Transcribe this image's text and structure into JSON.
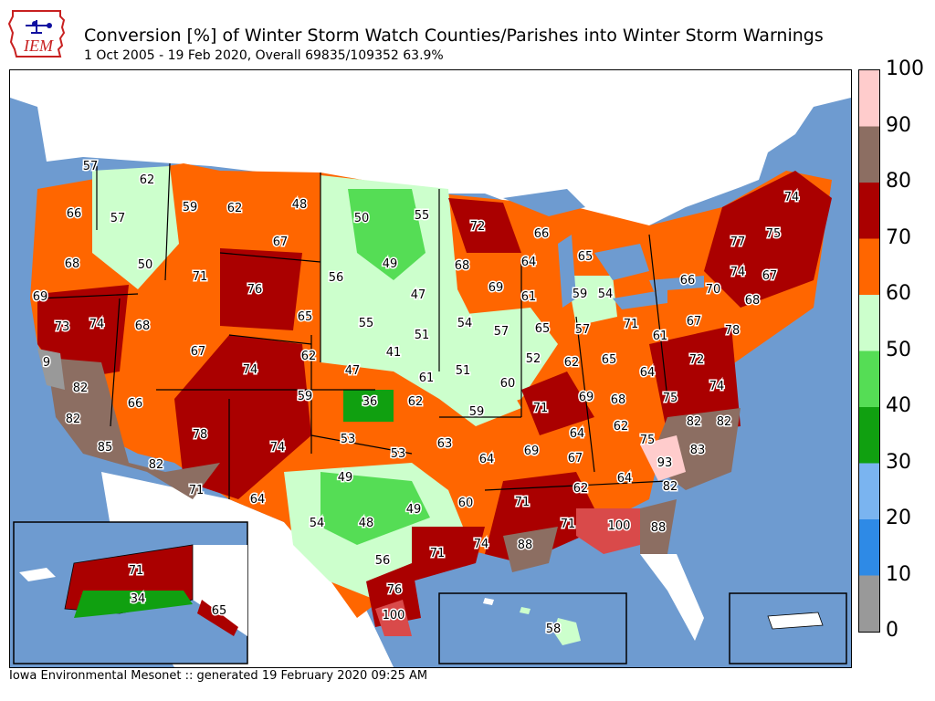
{
  "header": {
    "logo_text": "IEM",
    "title": "Conversion [%] of Winter Storm Watch Counties/Parishes into Winter Storm Warnings",
    "subtitle": "1 Oct 2005 - 19 Feb 2020, Overall 69835/109352 63.9%"
  },
  "footer": {
    "text": "Iowa Environmental Mesonet :: generated 19 February 2020 09:25 AM"
  },
  "colors": {
    "ocean": "#6e9bd0",
    "land_nodata": "#ffffff",
    "bins": [
      "#999999",
      "#2e8ae6",
      "#7ab4f0",
      "#10a010",
      "#55dd55",
      "#ccffcc",
      "#ff6600",
      "#aa0000",
      "#8c6e62",
      "#ffcccc"
    ]
  },
  "legend": {
    "ticks": [
      "0",
      "10",
      "20",
      "30",
      "40",
      "50",
      "60",
      "70",
      "80",
      "90",
      "100"
    ]
  },
  "regions": [
    {
      "id": "wa-w",
      "value": "57"
    },
    {
      "id": "wa-e",
      "value": "62"
    },
    {
      "id": "or-w",
      "value": "66"
    },
    {
      "id": "or-c",
      "value": "57"
    },
    {
      "id": "id-n",
      "value": "59"
    },
    {
      "id": "mt-w",
      "value": "62"
    },
    {
      "id": "mt-ne",
      "value": "48"
    },
    {
      "id": "nd-w",
      "value": "50"
    },
    {
      "id": "nd-e",
      "value": "55"
    },
    {
      "id": "mn-n",
      "value": "72"
    },
    {
      "id": "mi-up",
      "value": "66"
    },
    {
      "id": "mt-e",
      "value": "67"
    },
    {
      "id": "or-e",
      "value": "68"
    },
    {
      "id": "id-s",
      "value": "50"
    },
    {
      "id": "id-se",
      "value": "71"
    },
    {
      "id": "wy",
      "value": "76"
    },
    {
      "id": "sd-w",
      "value": "56"
    },
    {
      "id": "sd-e",
      "value": "49"
    },
    {
      "id": "mn-s",
      "value": "68"
    },
    {
      "id": "wi-n",
      "value": "64"
    },
    {
      "id": "mi-n",
      "value": "65"
    },
    {
      "id": "ca-nw",
      "value": "69"
    },
    {
      "id": "ca-n",
      "value": "73"
    },
    {
      "id": "nv-n",
      "value": "74"
    },
    {
      "id": "ut-n",
      "value": "68"
    },
    {
      "id": "wy-s",
      "value": "65"
    },
    {
      "id": "ne-w",
      "value": "55"
    },
    {
      "id": "sd-se",
      "value": "47"
    },
    {
      "id": "ia",
      "value": "54"
    },
    {
      "id": "wi-s",
      "value": "61"
    },
    {
      "id": "wi-se",
      "value": "69"
    },
    {
      "id": "il-n",
      "value": "57"
    },
    {
      "id": "mi-s",
      "value": "59"
    },
    {
      "id": "mi-se",
      "value": "54"
    },
    {
      "id": "ca-bay",
      "value": "9"
    },
    {
      "id": "ut-s",
      "value": "67"
    },
    {
      "id": "co-w",
      "value": "74"
    },
    {
      "id": "co-e",
      "value": "62"
    },
    {
      "id": "ne-s",
      "value": "41"
    },
    {
      "id": "ne-e",
      "value": "51"
    },
    {
      "id": "in-n",
      "value": "65"
    },
    {
      "id": "oh-nw",
      "value": "57"
    },
    {
      "id": "oh-ne",
      "value": "71"
    },
    {
      "id": "pa-w",
      "value": "61"
    },
    {
      "id": "ny-w",
      "value": "66"
    },
    {
      "id": "ny-c",
      "value": "70"
    },
    {
      "id": "ny-e",
      "value": "77"
    },
    {
      "id": "vt",
      "value": "74"
    },
    {
      "id": "me",
      "value": "74"
    },
    {
      "id": "nh",
      "value": "75"
    },
    {
      "id": "ma",
      "value": "67"
    },
    {
      "id": "ct",
      "value": "68"
    },
    {
      "id": "pa-e",
      "value": "67"
    },
    {
      "id": "nj",
      "value": "78"
    },
    {
      "id": "ca-sierra",
      "value": "82"
    },
    {
      "id": "nv-s",
      "value": "66"
    },
    {
      "id": "co-se",
      "value": "59"
    },
    {
      "id": "ks-w",
      "value": "47"
    },
    {
      "id": "ks-c",
      "value": "36"
    },
    {
      "id": "ks-e",
      "value": "61"
    },
    {
      "id": "ks-se",
      "value": "62"
    },
    {
      "id": "mo-n",
      "value": "51"
    },
    {
      "id": "il-c",
      "value": "52"
    },
    {
      "id": "mo-e",
      "value": "60"
    },
    {
      "id": "in-s",
      "value": "62"
    },
    {
      "id": "oh-s",
      "value": "65"
    },
    {
      "id": "wv",
      "value": "64"
    },
    {
      "id": "md",
      "value": "72"
    },
    {
      "id": "de",
      "value": "74"
    },
    {
      "id": "va",
      "value": "75"
    },
    {
      "id": "ca-c",
      "value": "82"
    },
    {
      "id": "mo-s",
      "value": "59"
    },
    {
      "id": "ky-w",
      "value": "71"
    },
    {
      "id": "ky-c",
      "value": "69"
    },
    {
      "id": "ky-e",
      "value": "68"
    },
    {
      "id": "nc-w",
      "value": "62"
    },
    {
      "id": "nc-c",
      "value": "82"
    },
    {
      "id": "nc-e",
      "value": "82"
    },
    {
      "id": "ca-s",
      "value": "85"
    },
    {
      "id": "az-n",
      "value": "78"
    },
    {
      "id": "nm-n",
      "value": "74"
    },
    {
      "id": "ok-w",
      "value": "53"
    },
    {
      "id": "ok-c",
      "value": "53"
    },
    {
      "id": "ok-e",
      "value": "63"
    },
    {
      "id": "ar-n",
      "value": "64"
    },
    {
      "id": "tn-w",
      "value": "69"
    },
    {
      "id": "tn-c",
      "value": "64"
    },
    {
      "id": "tn-e",
      "value": "67"
    },
    {
      "id": "sc-w",
      "value": "75"
    },
    {
      "id": "nc-se",
      "value": "83"
    },
    {
      "id": "ca-se",
      "value": "82"
    },
    {
      "id": "az-s",
      "value": "71"
    },
    {
      "id": "nm-s",
      "value": "64"
    },
    {
      "id": "tx-pan",
      "value": "49"
    },
    {
      "id": "ok-s",
      "value": "49"
    },
    {
      "id": "ar-s",
      "value": "60"
    },
    {
      "id": "ms",
      "value": "71"
    },
    {
      "id": "al-n",
      "value": "62"
    },
    {
      "id": "ga-n",
      "value": "64"
    },
    {
      "id": "sc-c",
      "value": "93"
    },
    {
      "id": "sc-e",
      "value": "82"
    },
    {
      "id": "tx-w",
      "value": "54"
    },
    {
      "id": "tx-n",
      "value": "48"
    },
    {
      "id": "tx-c",
      "value": "56"
    },
    {
      "id": "tx-e",
      "value": "71"
    },
    {
      "id": "la-n",
      "value": "74"
    },
    {
      "id": "la-s",
      "value": "88"
    },
    {
      "id": "al-s",
      "value": "71"
    },
    {
      "id": "ga-s",
      "value": "100"
    },
    {
      "id": "ga-se",
      "value": "88"
    },
    {
      "id": "tx-s",
      "value": "76"
    },
    {
      "id": "tx-deep",
      "value": "100"
    },
    {
      "id": "ak-n",
      "value": "71"
    },
    {
      "id": "ak-c",
      "value": "34"
    },
    {
      "id": "ak-se",
      "value": "65"
    },
    {
      "id": "hi",
      "value": "58"
    }
  ]
}
